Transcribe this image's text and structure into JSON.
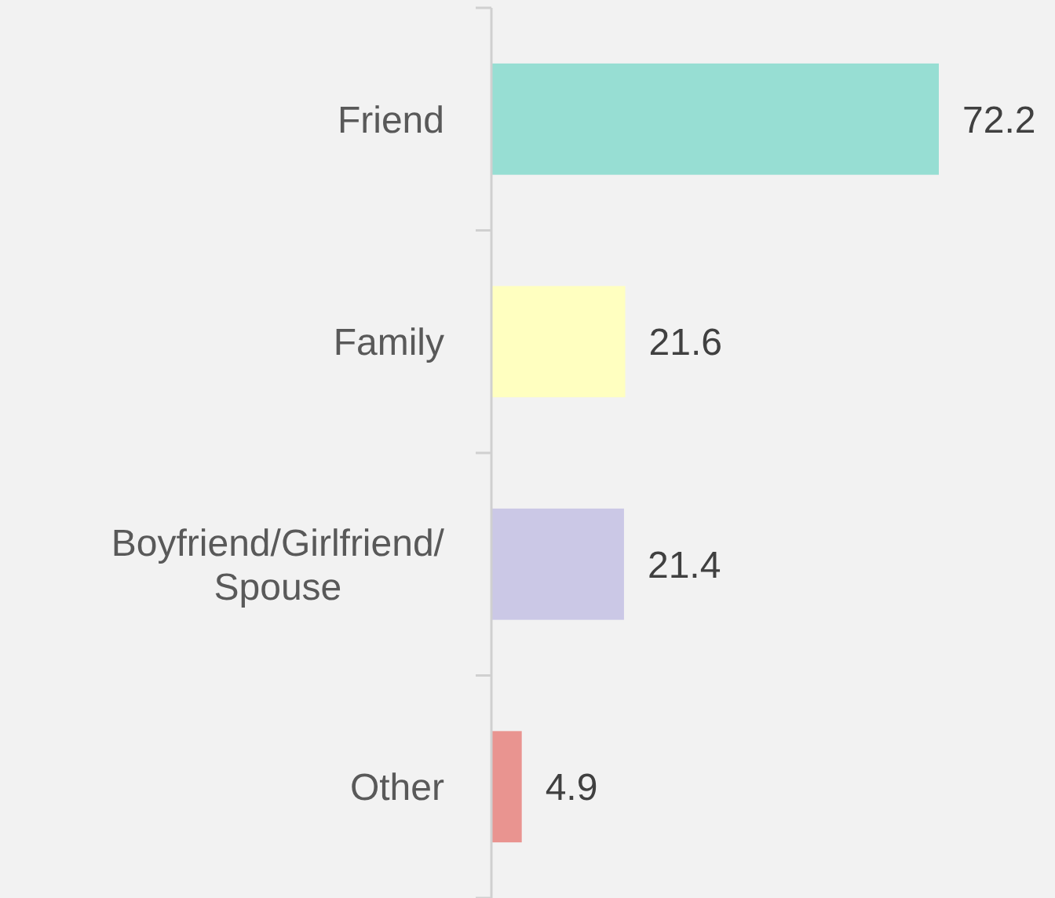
{
  "chart_data": {
    "type": "bar",
    "orientation": "horizontal",
    "categories": [
      "Friend",
      "Family",
      "Boyfriend/Girlfriend/Spouse",
      "Other"
    ],
    "values": [
      72.2,
      21.6,
      21.4,
      4.9
    ],
    "colors": [
      "#97ded3",
      "#ffffc0",
      "#cbc8e6",
      "#e99490"
    ],
    "data_labels": true
  }
}
